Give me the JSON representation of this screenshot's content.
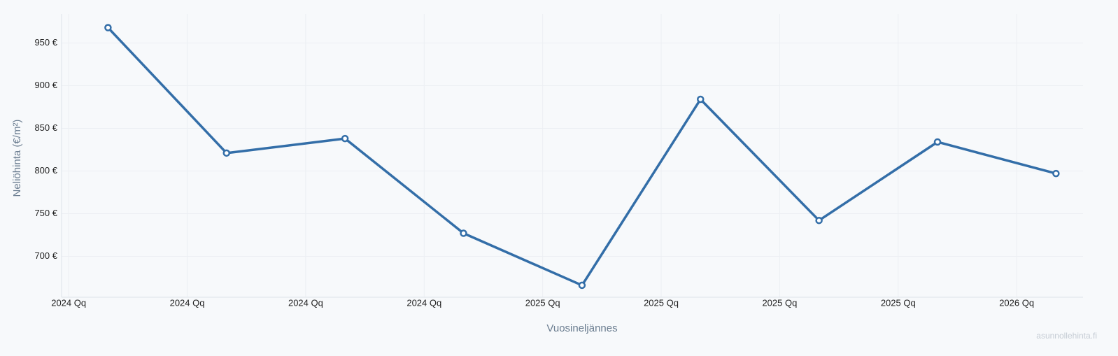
{
  "chart_data": {
    "type": "line",
    "y_label": "Neliöhinta (€/m²)",
    "x_label": "Vuosineljännes",
    "watermark": "asunnollehinta.fi",
    "x": [
      2024.083,
      2024.333,
      2024.583,
      2024.833,
      2025.083,
      2025.333,
      2025.583,
      2025.833,
      2026.083
    ],
    "series": [
      {
        "name": "Neliöhinta",
        "color": "#336ea8",
        "values": [
          968,
          821,
          838,
          727,
          666,
          884,
          742,
          834,
          797
        ]
      }
    ],
    "xlim": [
      2023.985,
      2026.14
    ],
    "xticks": [
      {
        "value": 2024,
        "label": "2024 Qq"
      },
      {
        "value": 2024.25,
        "label": "2024 Qq"
      },
      {
        "value": 2024.5,
        "label": "2024 Qq"
      },
      {
        "value": 2024.75,
        "label": "2024 Qq"
      },
      {
        "value": 2025,
        "label": "2025 Qq"
      },
      {
        "value": 2025.25,
        "label": "2025 Qq"
      },
      {
        "value": 2025.5,
        "label": "2025 Qq"
      },
      {
        "value": 2025.75,
        "label": "2025 Qq"
      },
      {
        "value": 2026,
        "label": "2026 Qq"
      }
    ],
    "ylim": [
      652,
      984
    ],
    "yticks": [
      {
        "value": 700,
        "label": "700 €"
      },
      {
        "value": 750,
        "label": "750 €"
      },
      {
        "value": 800,
        "label": "800 €"
      },
      {
        "value": 850,
        "label": "850 €"
      },
      {
        "value": 900,
        "label": "900 €"
      },
      {
        "value": 950,
        "label": "950 €"
      }
    ],
    "grid": true
  }
}
